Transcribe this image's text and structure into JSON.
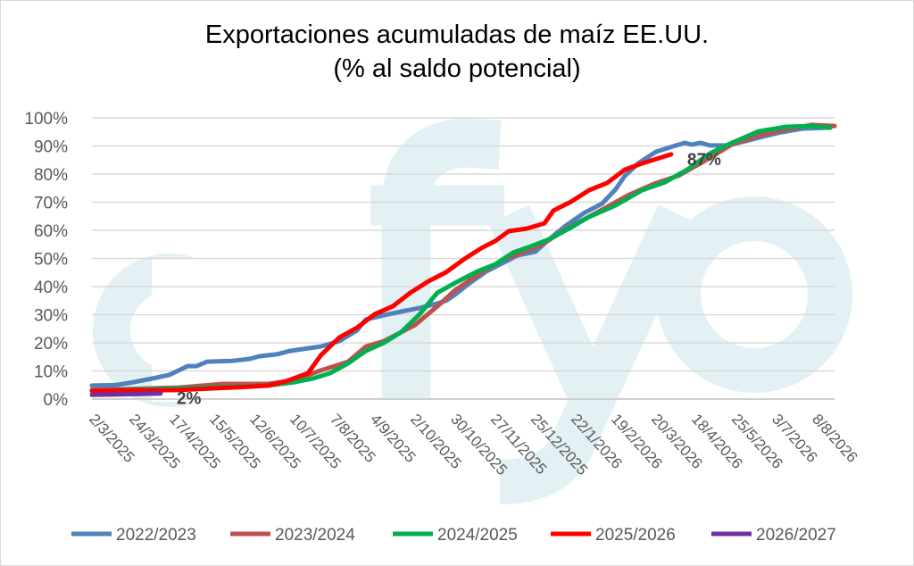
{
  "chart_data": {
    "type": "line",
    "title": [
      "Exportaciones acumuladas de maíz EE.UU.",
      "(% al saldo potencial)"
    ],
    "xlabel": "",
    "ylabel": "",
    "ylim": [
      0,
      100
    ],
    "yticks": [
      "0%",
      "10%",
      "20%",
      "30%",
      "40%",
      "50%",
      "60%",
      "70%",
      "80%",
      "90%",
      "100%"
    ],
    "categories": [
      "2/3/2025",
      "24/3/2025",
      "17/4/2025",
      "15/5/2025",
      "12/6/2025",
      "10/7/2025",
      "7/8/2025",
      "4/9/2025",
      "2/10/2025",
      "30/10/2025",
      "27/11/2025",
      "25/12/2025",
      "22/1/2026",
      "19/2/2026",
      "20/3/2026",
      "18/4/2026",
      "25/5/2026",
      "3/7/2026",
      "8/8/2026"
    ],
    "x_units": "category index (fractional, 0 = 2/3/2025)",
    "grid": true,
    "legend_position": "bottom",
    "watermark": "fyo",
    "series": [
      {
        "name": "2022/2023",
        "color": "#4f81bd",
        "points": [
          [
            0,
            4.8
          ],
          [
            0.6,
            5
          ],
          [
            1.04,
            6
          ],
          [
            1.5,
            7.3
          ],
          [
            1.93,
            8.6
          ],
          [
            2.38,
            11.7
          ],
          [
            2.6,
            11.7
          ],
          [
            2.87,
            13.3
          ],
          [
            3.5,
            13.6
          ],
          [
            3.93,
            14.3
          ],
          [
            4.16,
            15.2
          ],
          [
            4.6,
            15.9
          ],
          [
            4.93,
            17.1
          ],
          [
            5.27,
            17.8
          ],
          [
            5.7,
            18.7
          ],
          [
            6.16,
            20.6
          ],
          [
            6.6,
            24.4
          ],
          [
            6.82,
            28.3
          ],
          [
            7.27,
            29.8
          ],
          [
            7.7,
            31.1
          ],
          [
            8.16,
            32.4
          ],
          [
            8.6,
            34
          ],
          [
            8.82,
            35
          ],
          [
            9.04,
            37.1
          ],
          [
            9.38,
            41
          ],
          [
            9.82,
            45.4
          ],
          [
            10.16,
            47.9
          ],
          [
            10.6,
            51.1
          ],
          [
            11.04,
            52.4
          ],
          [
            11.38,
            56.8
          ],
          [
            11.82,
            61.9
          ],
          [
            12.27,
            66.3
          ],
          [
            12.7,
            69.5
          ],
          [
            13.04,
            74.6
          ],
          [
            13.27,
            79.4
          ],
          [
            13.6,
            83.8
          ],
          [
            14.04,
            87.9
          ],
          [
            14.38,
            89.5
          ],
          [
            14.76,
            91.1
          ],
          [
            14.93,
            90.5
          ],
          [
            15.16,
            91.1
          ],
          [
            15.38,
            90.2
          ],
          [
            15.82,
            90.2
          ],
          [
            16.27,
            91.7
          ],
          [
            16.7,
            93.3
          ],
          [
            17.16,
            94.9
          ],
          [
            17.7,
            96.2
          ],
          [
            18.38,
            96.5
          ]
        ]
      },
      {
        "name": "2023/2024",
        "color": "#c0504d",
        "points": [
          [
            0,
            3.2
          ],
          [
            2.16,
            4.1
          ],
          [
            3.27,
            5.4
          ],
          [
            4.38,
            5.4
          ],
          [
            5.04,
            6.7
          ],
          [
            5.7,
            10.2
          ],
          [
            6.38,
            13.3
          ],
          [
            6.82,
            18.7
          ],
          [
            7.27,
            20.6
          ],
          [
            8.04,
            26.3
          ],
          [
            8.6,
            33
          ],
          [
            9.04,
            38.7
          ],
          [
            9.7,
            45.1
          ],
          [
            10.27,
            49.8
          ],
          [
            10.7,
            52.1
          ],
          [
            11.16,
            54.6
          ],
          [
            11.7,
            59.4
          ],
          [
            12.16,
            63.2
          ],
          [
            12.82,
            68.3
          ],
          [
            13.38,
            72.7
          ],
          [
            14.04,
            76.8
          ],
          [
            14.6,
            79.4
          ],
          [
            15.27,
            84.8
          ],
          [
            15.93,
            90.5
          ],
          [
            16.6,
            93.7
          ],
          [
            17.27,
            95.9
          ],
          [
            17.93,
            97.5
          ],
          [
            18.49,
            97.1
          ]
        ]
      },
      {
        "name": "2024/2025",
        "color": "#00b050",
        "points": [
          [
            0,
            2.9
          ],
          [
            2.16,
            3.8
          ],
          [
            4.38,
            4.8
          ],
          [
            5.04,
            6
          ],
          [
            5.5,
            7.3
          ],
          [
            5.93,
            9.2
          ],
          [
            6.38,
            12.7
          ],
          [
            6.82,
            17.1
          ],
          [
            7.27,
            20
          ],
          [
            7.7,
            23.8
          ],
          [
            8.16,
            30.2
          ],
          [
            8.6,
            37.8
          ],
          [
            9.04,
            41.3
          ],
          [
            9.6,
            45.4
          ],
          [
            10.04,
            47.9
          ],
          [
            10.49,
            52.1
          ],
          [
            10.93,
            54.3
          ],
          [
            11.38,
            56.8
          ],
          [
            11.93,
            61
          ],
          [
            12.38,
            64.8
          ],
          [
            13.04,
            68.9
          ],
          [
            13.7,
            74.3
          ],
          [
            14.27,
            77.1
          ],
          [
            14.82,
            81.6
          ],
          [
            15.38,
            87.3
          ],
          [
            15.93,
            91.1
          ],
          [
            16.6,
            95.2
          ],
          [
            17.27,
            96.8
          ],
          [
            17.93,
            97.1
          ],
          [
            18.38,
            96.5
          ]
        ]
      },
      {
        "name": "2025/2026",
        "color": "#ff0000",
        "end_label": "87%",
        "points": [
          [
            0,
            2.9
          ],
          [
            2.16,
            3.2
          ],
          [
            3.93,
            4.4
          ],
          [
            4.38,
            4.8
          ],
          [
            4.82,
            6.3
          ],
          [
            5.38,
            9.2
          ],
          [
            5.7,
            15.6
          ],
          [
            6.16,
            21.9
          ],
          [
            6.6,
            25.4
          ],
          [
            7.04,
            30.2
          ],
          [
            7.49,
            33
          ],
          [
            7.93,
            37.8
          ],
          [
            8.38,
            41.9
          ],
          [
            8.82,
            45.1
          ],
          [
            9.27,
            49.8
          ],
          [
            9.7,
            53.7
          ],
          [
            10.04,
            56.2
          ],
          [
            10.38,
            59.7
          ],
          [
            10.82,
            60.6
          ],
          [
            11.27,
            62.5
          ],
          [
            11.49,
            67
          ],
          [
            11.93,
            70.2
          ],
          [
            12.38,
            74.3
          ],
          [
            12.82,
            76.8
          ],
          [
            13.27,
            81.6
          ],
          [
            13.7,
            83.8
          ],
          [
            14.42,
            87
          ]
        ]
      },
      {
        "name": "2026/2027",
        "color": "#7030a0",
        "end_label": "2%",
        "points": [
          [
            0,
            1.5
          ],
          [
            0.8,
            1.7
          ],
          [
            1.71,
            2
          ]
        ]
      }
    ]
  }
}
